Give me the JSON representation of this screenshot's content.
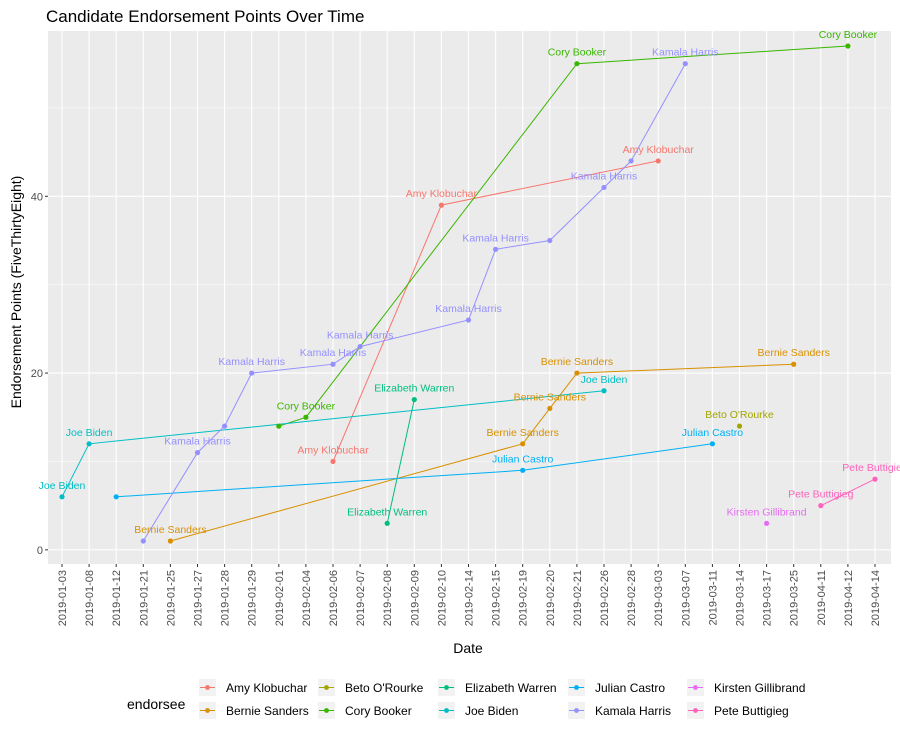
{
  "chart_data": {
    "type": "line",
    "title": "Candidate Endorsement Points Over Time",
    "xlabel": "Date",
    "ylabel": "Endorsement Points (FiveThirtyEight)",
    "categories": [
      "2019-01-03",
      "2019-01-08",
      "2019-01-12",
      "2019-01-21",
      "2019-01-25",
      "2019-01-27",
      "2019-01-28",
      "2019-01-29",
      "2019-02-01",
      "2019-02-04",
      "2019-02-06",
      "2019-02-07",
      "2019-02-08",
      "2019-02-09",
      "2019-02-10",
      "2019-02-14",
      "2019-02-15",
      "2019-02-19",
      "2019-02-20",
      "2019-02-21",
      "2019-02-26",
      "2019-02-28",
      "2019-03-03",
      "2019-03-07",
      "2019-03-11",
      "2019-03-14",
      "2019-03-17",
      "2019-03-25",
      "2019-04-11",
      "2019-04-12",
      "2019-04-14"
    ],
    "yticks": [
      0,
      20,
      40
    ],
    "ylim": [
      -1.6,
      58.7
    ],
    "grid": true,
    "legend": {
      "title": "endorsee",
      "position": "bottom"
    },
    "series": [
      {
        "name": "Amy Klobuchar",
        "color": "#F8766D",
        "points": [
          {
            "x": "2019-02-06",
            "y": 10,
            "label": "Amy Klobuchar"
          },
          {
            "x": "2019-02-10",
            "y": 39,
            "label": "Amy Klobuchar"
          },
          {
            "x": "2019-03-03",
            "y": 44,
            "label": "Amy Klobuchar"
          }
        ]
      },
      {
        "name": "Bernie Sanders",
        "color": "#D89000",
        "points": [
          {
            "x": "2019-01-25",
            "y": 1,
            "label": "Bernie Sanders"
          },
          {
            "x": "2019-02-19",
            "y": 12,
            "label": "Bernie Sanders"
          },
          {
            "x": "2019-02-20",
            "y": 16,
            "label": "Bernie Sanders"
          },
          {
            "x": "2019-02-21",
            "y": 20,
            "label": "Bernie Sanders"
          },
          {
            "x": "2019-03-25",
            "y": 21,
            "label": "Bernie Sanders"
          }
        ]
      },
      {
        "name": "Beto O'Rourke",
        "color": "#A3A500",
        "points": [
          {
            "x": "2019-03-14",
            "y": 14,
            "label": "Beto O'Rourke"
          }
        ]
      },
      {
        "name": "Cory Booker",
        "color": "#39B600",
        "points": [
          {
            "x": "2019-02-01",
            "y": 14,
            "label": ""
          },
          {
            "x": "2019-02-04",
            "y": 15,
            "label": "Cory Booker"
          },
          {
            "x": "2019-02-21",
            "y": 55,
            "label": "Cory Booker"
          },
          {
            "x": "2019-04-12",
            "y": 57,
            "label": "Cory Booker"
          }
        ]
      },
      {
        "name": "Elizabeth Warren",
        "color": "#00BF7D",
        "points": [
          {
            "x": "2019-02-08",
            "y": 3,
            "label": "Elizabeth Warren"
          },
          {
            "x": "2019-02-09",
            "y": 17,
            "label": "Elizabeth Warren"
          }
        ]
      },
      {
        "name": "Joe Biden",
        "color": "#00BFC4",
        "points": [
          {
            "x": "2019-01-03",
            "y": 6,
            "label": "Joe Biden"
          },
          {
            "x": "2019-01-08",
            "y": 12,
            "label": "Joe Biden"
          },
          {
            "x": "2019-02-26",
            "y": 18,
            "label": "Joe Biden"
          }
        ]
      },
      {
        "name": "Julian Castro",
        "color": "#00B0F6",
        "points": [
          {
            "x": "2019-01-12",
            "y": 6,
            "label": ""
          },
          {
            "x": "2019-02-19",
            "y": 9,
            "label": "Julian Castro"
          },
          {
            "x": "2019-03-11",
            "y": 12,
            "label": "Julian Castro"
          }
        ]
      },
      {
        "name": "Kamala Harris",
        "color": "#9590FF",
        "points": [
          {
            "x": "2019-01-21",
            "y": 1,
            "label": ""
          },
          {
            "x": "2019-01-27",
            "y": 11,
            "label": "Kamala Harris"
          },
          {
            "x": "2019-01-28",
            "y": 14,
            "label": ""
          },
          {
            "x": "2019-01-29",
            "y": 20,
            "label": "Kamala Harris"
          },
          {
            "x": "2019-02-06",
            "y": 21,
            "label": "Kamala Harris"
          },
          {
            "x": "2019-02-07",
            "y": 23,
            "label": "Kamala Harris"
          },
          {
            "x": "2019-02-14",
            "y": 26,
            "label": "Kamala Harris"
          },
          {
            "x": "2019-02-15",
            "y": 34,
            "label": "Kamala Harris"
          },
          {
            "x": "2019-02-20",
            "y": 35,
            "label": ""
          },
          {
            "x": "2019-02-26",
            "y": 41,
            "label": "Kamala Harris"
          },
          {
            "x": "2019-02-28",
            "y": 44,
            "label": ""
          },
          {
            "x": "2019-03-07",
            "y": 55,
            "label": "Kamala Harris"
          }
        ]
      },
      {
        "name": "Kirsten Gillibrand",
        "color": "#E76BF3",
        "points": [
          {
            "x": "2019-03-17",
            "y": 3,
            "label": "Kirsten Gillibrand"
          }
        ]
      },
      {
        "name": "Pete Buttigieg",
        "color": "#FF62BC",
        "points": [
          {
            "x": "2019-04-11",
            "y": 5,
            "label": "Pete Buttigieg"
          },
          {
            "x": "2019-04-14",
            "y": 8,
            "label": "Pete Buttigieg"
          }
        ]
      }
    ]
  }
}
